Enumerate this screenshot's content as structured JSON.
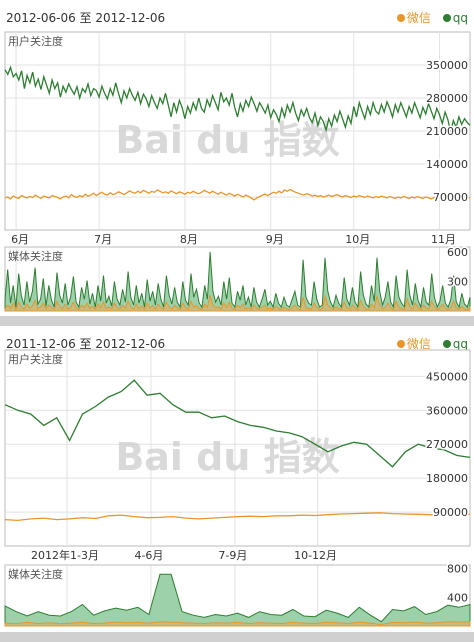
{
  "colors": {
    "weixin": "#e8962b",
    "qq": "#2e7d32",
    "qq_fill": "#7cc28e",
    "weixin_fill": "#d9b36a",
    "grid": "#e2e2e2",
    "border": "#bbbbbb",
    "watermark": "#d0d0d0"
  },
  "icons": {
    "legend_dot": "circle"
  },
  "watermark": "Bai du 指数",
  "chart_data": [
    {
      "type": "line",
      "date_range": "2012-06-06 至 2012-12-06",
      "legend": [
        "微信",
        "qq"
      ],
      "user_attention": {
        "label": "用户关注度",
        "ylim": [
          0,
          420000
        ],
        "yticks": [
          "350000",
          "280000",
          "210000",
          "140000",
          "70000"
        ],
        "ytick_values": [
          350000,
          280000,
          210000,
          140000,
          70000
        ],
        "xticks": [
          "6月",
          "7月",
          "8月",
          "9月",
          "10月",
          "11月"
        ],
        "xtick_index": [
          4,
          34,
          65,
          96,
          126,
          157
        ],
        "series": [
          {
            "name": "qq",
            "values": [
              340000,
              330000,
              345000,
              325000,
              332000,
              318000,
              338000,
              300000,
              328000,
              312000,
              335000,
              305000,
              320000,
              298000,
              325000,
              308000,
              290000,
              318000,
              300000,
              312000,
              282000,
              305000,
              292000,
              310000,
              298000,
              288000,
              304000,
              280000,
              300000,
              292000,
              310000,
              285000,
              300000,
              296000,
              282000,
              305000,
              290000,
              278000,
              300000,
              286000,
              312000,
              290000,
              270000,
              295000,
              280000,
              300000,
              286000,
              275000,
              292000,
              268000,
              288000,
              278000,
              262000,
              285000,
              270000,
              258000,
              280000,
              268000,
              290000,
              265000,
              240000,
              270000,
              250000,
              275000,
              260000,
              236000,
              262000,
              248000,
              270000,
              255000,
              280000,
              258000,
              250000,
              276000,
              262000,
              285000,
              270000,
              255000,
              292000,
              272000,
              280000,
              265000,
              290000,
              260000,
              240000,
              268000,
              252000,
              275000,
              262000,
              282000,
              268000,
              252000,
              270000,
              260000,
              248000,
              265000,
              238000,
              255000,
              245000,
              230000,
              258000,
              240000,
              265000,
              250000,
              270000,
              248000,
              232000,
              255000,
              242000,
              258000,
              238000,
              228000,
              248000,
              222000,
              240000,
              230000,
              212000,
              236000,
              220000,
              244000,
              230000,
              252000,
              235000,
              218000,
              242000,
              226000,
              262000,
              240000,
              270000,
              252000,
              236000,
              262000,
              245000,
              270000,
              252000,
              246000,
              266000,
              250000,
              272000,
              258000,
              240000,
              266000,
              250000,
              270000,
              255000,
              240000,
              262000,
              248000,
              270000,
              254000,
              238000,
              260000,
              246000,
              268000,
              252000,
              236000,
              258000,
              244000,
              226000,
              250000,
              234000,
              208000,
              232000,
              218000,
              240000,
              224000,
              236000,
              228000,
              222000
            ]
          },
          {
            "name": "微信",
            "values": [
              68000,
              70000,
              66000,
              72000,
              69000,
              67000,
              73000,
              70000,
              68000,
              71000,
              69000,
              74000,
              70000,
              67000,
              72000,
              70000,
              68000,
              73000,
              71000,
              69000,
              66000,
              70000,
              72000,
              68000,
              75000,
              71000,
              69000,
              73000,
              70000,
              76000,
              72000,
              74000,
              78000,
              73000,
              77000,
              80000,
              76000,
              74000,
              79000,
              75000,
              77000,
              81000,
              78000,
              75000,
              79000,
              83000,
              80000,
              78000,
              82000,
              79000,
              84000,
              81000,
              78000,
              82000,
              80000,
              85000,
              82000,
              79000,
              81000,
              78000,
              83000,
              80000,
              77000,
              81000,
              79000,
              76000,
              80000,
              78000,
              82000,
              79000,
              77000,
              80000,
              84000,
              81000,
              78000,
              82000,
              79000,
              76000,
              80000,
              77000,
              74000,
              78000,
              75000,
              72000,
              76000,
              73000,
              70000,
              74000,
              71000,
              68000,
              64000,
              68000,
              71000,
              74000,
              76000,
              73000,
              77000,
              80000,
              78000,
              82000,
              79000,
              85000,
              82000,
              86000,
              83000,
              80000,
              78000,
              76000,
              74000,
              77000,
              75000,
              72000,
              74000,
              71000,
              73000,
              70000,
              72000,
              74000,
              71000,
              73000,
              75000,
              72000,
              70000,
              73000,
              71000,
              69000,
              72000,
              70000,
              73000,
              71000,
              69000,
              72000,
              70000,
              68000,
              71000,
              69000,
              72000,
              70000,
              68000,
              71000,
              69000,
              67000,
              70000,
              68000,
              71000,
              69000,
              67000,
              70000,
              68000,
              71000,
              69000,
              67000,
              70000,
              68000,
              66000,
              69000,
              67000,
              70000,
              68000,
              66000,
              69000,
              67000,
              70000,
              68000,
              66000,
              69000,
              67000,
              70000,
              68000
            ]
          }
        ]
      },
      "media_attention": {
        "label": "媒体关注度",
        "ylim": [
          0,
          650
        ],
        "yticks": [
          "600",
          "300"
        ],
        "ytick_values": [
          600,
          300
        ],
        "series": [
          {
            "name": "qq",
            "values": [
              120,
              420,
              80,
              260,
              40,
              380,
              150,
              60,
              300,
              90,
              200,
              440,
              70,
              120,
              330,
              50,
              260,
              110,
              40,
              390,
              160,
              80,
              280,
              60,
              140,
              350,
              90,
              40,
              240,
              120,
              310,
              70,
              180,
              40,
              260,
              100,
              360,
              80,
              150,
              50,
              300,
              120,
              60,
              220,
              90,
              400,
              140,
              60,
              260,
              80,
              180,
              40,
              320,
              100,
              200,
              60,
              280,
              120,
              40,
              360,
              160,
              70,
              240,
              90,
              40,
              300,
              110,
              60,
              380,
              140,
              220,
              80,
              40,
              260,
              120,
              600,
              200,
              90,
              150,
              60,
              300,
              120,
              340,
              80,
              40,
              200,
              110,
              260,
              60,
              140,
              40,
              240,
              90,
              40,
              120,
              220,
              60,
              100,
              40,
              180,
              80,
              40,
              140,
              60,
              40,
              120,
              200,
              60,
              40,
              520,
              140,
              80,
              60,
              300,
              120,
              40,
              60,
              540,
              200,
              90,
              40,
              160,
              80,
              40,
              340,
              120,
              60,
              240,
              90,
              40,
              400,
              160,
              70,
              40,
              260,
              100,
              540,
              200,
              60,
              140,
              300,
              90,
              40,
              360,
              140,
              80,
              40,
              420,
              160,
              60,
              280,
              110,
              40,
              240,
              90,
              60,
              380,
              140,
              40,
              100,
              260,
              80,
              40,
              120,
              360,
              90,
              40,
              180,
              70,
              40,
              140
            ]
          },
          {
            "name": "微信",
            "values": [
              20,
              60,
              30,
              80,
              15,
              90,
              40,
              20,
              70,
              30,
              50,
              110,
              25,
              40,
              80,
              20,
              60,
              35,
              15,
              100,
              45,
              25,
              70,
              20,
              40,
              90,
              30,
              15,
              60,
              35,
              80,
              25,
              50,
              15,
              70,
              30,
              90,
              25,
              45,
              20,
              80,
              35,
              20,
              60,
              30,
              100,
              40,
              20,
              70,
              25,
              50,
              15,
              80,
              30,
              55,
              20,
              70,
              35,
              15,
              90,
              45,
              20,
              60,
              30,
              15,
              80,
              35,
              20,
              100,
              40,
              60,
              25,
              15,
              70,
              35,
              160,
              60,
              30,
              45,
              20,
              80,
              35,
              90,
              25,
              15,
              60,
              35,
              70,
              20,
              40,
              15,
              60,
              30,
              15,
              40,
              60,
              20,
              30,
              15,
              50,
              25,
              15,
              40,
              20,
              15,
              35,
              60,
              20,
              15,
              140,
              40,
              25,
              20,
              80,
              35,
              15,
              20,
              150,
              60,
              30,
              15,
              45,
              25,
              15,
              90,
              35,
              20,
              60,
              30,
              15,
              110,
              45,
              20,
              15,
              70,
              30,
              150,
              60,
              20,
              40,
              80,
              30,
              15,
              100,
              40,
              25,
              15,
              120,
              45,
              20,
              80,
              35,
              15,
              60,
              30,
              20,
              100,
              40,
              15,
              30,
              70,
              25,
              15,
              35,
              100,
              30,
              15,
              50,
              20,
              15,
              40
            ]
          }
        ]
      }
    },
    {
      "type": "line",
      "date_range": "2011-12-06 至 2012-12-06",
      "legend": [
        "微信",
        "qq"
      ],
      "user_attention": {
        "label": "用户关注度",
        "ylim": [
          0,
          520000
        ],
        "yticks": [
          "450000",
          "360000",
          "270000",
          "180000",
          "90000"
        ],
        "ytick_values": [
          450000,
          360000,
          270000,
          180000,
          90000
        ],
        "xticks": [
          "2012年1-3月",
          "4-6月",
          "7-9月",
          "10-12月"
        ],
        "xtick_index": [
          4.8,
          11.3,
          17.8,
          24.2
        ],
        "series": [
          {
            "name": "qq",
            "values": [
              375000,
              360000,
              350000,
              320000,
              340000,
              280000,
              350000,
              370000,
              395000,
              410000,
              440000,
              400000,
              405000,
              375000,
              355000,
              355000,
              340000,
              345000,
              330000,
              320000,
              315000,
              305000,
              300000,
              290000,
              270000,
              250000,
              265000,
              275000,
              270000,
              240000,
              210000,
              250000,
              270000,
              260000,
              255000,
              240000,
              235000
            ]
          },
          {
            "name": "微信",
            "values": [
              70000,
              68000,
              72000,
              74000,
              70000,
              72000,
              75000,
              73000,
              80000,
              82000,
              78000,
              75000,
              76000,
              78000,
              74000,
              72000,
              74000,
              76000,
              78000,
              79000,
              78000,
              80000,
              80000,
              82000,
              81000,
              83000,
              85000,
              86000,
              87000,
              88000,
              86000,
              85000,
              84000,
              83000,
              82000,
              83000,
              84000
            ]
          }
        ]
      },
      "media_attention": {
        "label": "媒体关注度",
        "ylim": [
          0,
          850
        ],
        "yticks": [
          "800",
          "400"
        ],
        "ytick_values": [
          800,
          400
        ],
        "series": [
          {
            "name": "qq",
            "values": [
              280,
              200,
              140,
              200,
              150,
              140,
              200,
              300,
              150,
              210,
              250,
              220,
              260,
              160,
              720,
              720,
              200,
              150,
              120,
              160,
              140,
              180,
              120,
              200,
              160,
              150,
              230,
              140,
              130,
              220,
              180,
              120,
              260,
              150,
              60,
              230,
              210,
              270,
              160,
              200,
              290,
              260,
              300
            ]
          },
          {
            "name": "微信",
            "values": [
              40,
              30,
              50,
              35,
              45,
              30,
              40,
              50,
              35,
              40,
              55,
              45,
              50,
              40,
              60,
              55,
              45,
              40,
              35,
              45,
              40,
              50,
              35,
              45,
              40,
              35,
              50,
              40,
              35,
              50,
              45,
              35,
              55,
              40,
              20,
              50,
              45,
              55,
              40,
              45,
              60,
              55,
              60
            ]
          }
        ]
      }
    }
  ]
}
